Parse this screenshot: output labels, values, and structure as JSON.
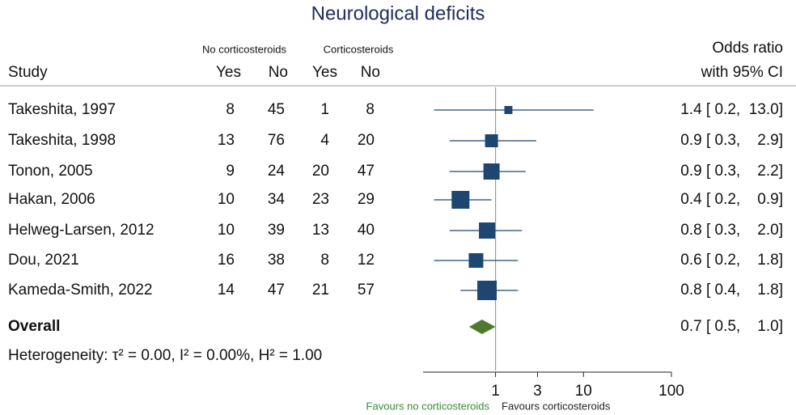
{
  "chart_data": {
    "type": "forest",
    "title": "Neurological deficits",
    "group_labels": [
      "No corticosteroids",
      "Corticosteroids"
    ],
    "columns": [
      "Study",
      "Yes",
      "No",
      "Yes",
      "No"
    ],
    "effect_header": [
      "Odds ratio",
      "with 95% CI"
    ],
    "studies": [
      {
        "name": "Takeshita, 1997",
        "counts": [
          8,
          45,
          1,
          8
        ],
        "or": 1.4,
        "ci": [
          0.2,
          13.0
        ],
        "weight": 3.9,
        "ci_text": "1.4 [ 0.2,  13.0]"
      },
      {
        "name": "Takeshita, 1998",
        "counts": [
          13,
          76,
          4,
          20
        ],
        "or": 0.9,
        "ci": [
          0.3,
          2.9
        ],
        "weight": 10.1,
        "ci_text": "0.9 [ 0.3,    2.9]"
      },
      {
        "name": "Tonon, 2005",
        "counts": [
          9,
          24,
          20,
          47
        ],
        "or": 0.9,
        "ci": [
          0.3,
          2.2
        ],
        "weight": 15.7,
        "ci_text": "0.9 [ 0.3,    2.2]"
      },
      {
        "name": "Hakan, 2006",
        "counts": [
          10,
          34,
          23,
          29
        ],
        "or": 0.4,
        "ci": [
          0.2,
          0.9
        ],
        "weight": 19.1,
        "ci_text": "0.4 [ 0.2,    0.9]"
      },
      {
        "name": "Helweg-Larsen, 2012",
        "counts": [
          10,
          39,
          13,
          40
        ],
        "or": 0.8,
        "ci": [
          0.3,
          2.0
        ],
        "weight": 15.7,
        "ci_text": "0.8 [ 0.3,    2.0]"
      },
      {
        "name": "Dou, 2021",
        "counts": [
          16,
          38,
          8,
          12
        ],
        "or": 0.6,
        "ci": [
          0.2,
          1.8
        ],
        "weight": 12.8,
        "ci_text": "0.6 [ 0.2,    1.8]"
      },
      {
        "name": "Kameda-Smith, 2022",
        "counts": [
          14,
          47,
          21,
          57
        ],
        "or": 0.8,
        "ci": [
          0.4,
          1.8
        ],
        "weight": 22.7,
        "ci_text": "0.8 [ 0.4,    1.8]"
      }
    ],
    "overall": {
      "name": "Overall",
      "or": 0.7,
      "ci": [
        0.5,
        1.0
      ],
      "ci_text": "0.7 [ 0.5,    1.0]"
    },
    "heterogeneity": "Heterogeneity: τ² = 0.00, I² = 0.00%, H² = 1.00",
    "xlim": [
      0.15,
      100
    ],
    "xticks": [
      1,
      3,
      10,
      100
    ],
    "log_x": true,
    "null_line": 1,
    "favours": [
      "Favours no corticosteroids",
      "Favours corticosteroids"
    ],
    "favours_colors": [
      "#3a8a3a",
      "#222222"
    ],
    "marker_color": "#1f4670",
    "diamond_color": "#4e7a2e",
    "title_color": "#1f2d5a"
  }
}
